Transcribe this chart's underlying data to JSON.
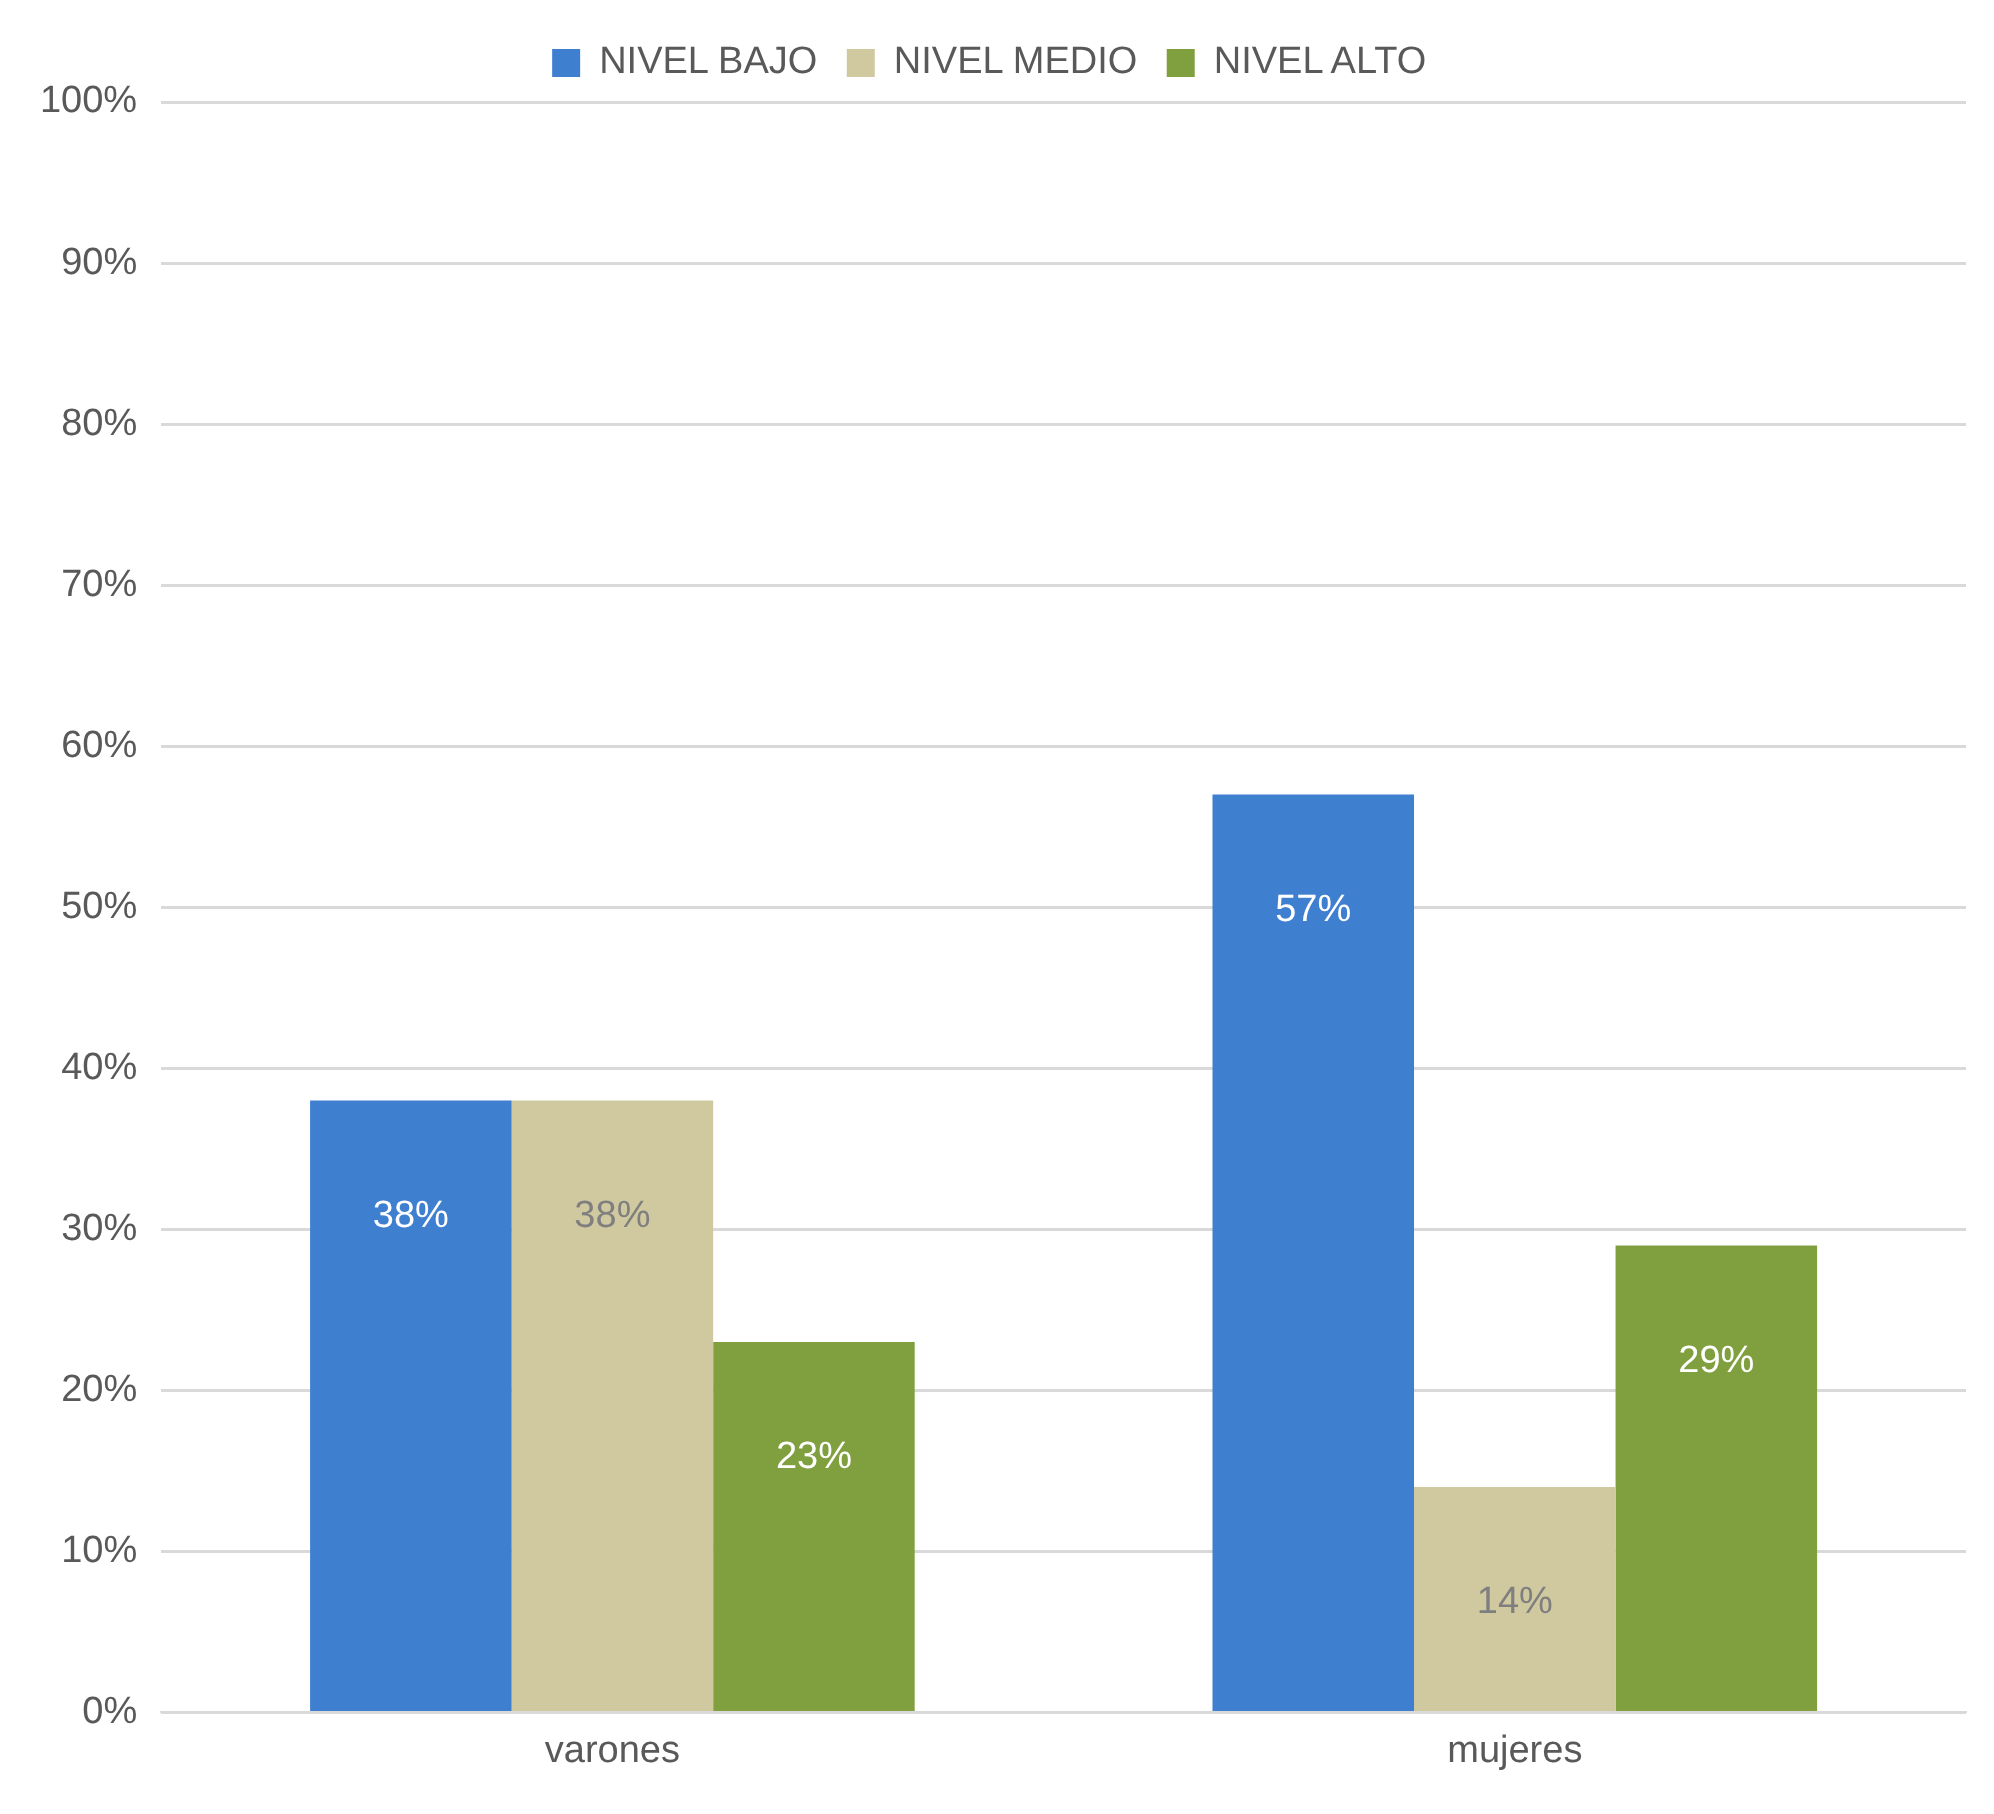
{
  "chart_data": {
    "type": "bar",
    "categories": [
      "varones",
      "mujeres"
    ],
    "series": [
      {
        "name": "NIVEL BAJO",
        "color": "#3f7fd0",
        "values": [
          38,
          57
        ]
      },
      {
        "name": "NIVEL MEDIO",
        "color": "#d0c9a0",
        "values": [
          38,
          14
        ]
      },
      {
        "name": "NIVEL ALTO",
        "color": "#80a040",
        "values": [
          23,
          29
        ]
      }
    ],
    "ylim": [
      0,
      100
    ],
    "yticks": [
      {
        "value": 0,
        "label": "0%"
      },
      {
        "value": 10,
        "label": "10%"
      },
      {
        "value": 20,
        "label": "20%"
      },
      {
        "value": 30,
        "label": "30%"
      },
      {
        "value": 40,
        "label": "40%"
      },
      {
        "value": 50,
        "label": "50%"
      },
      {
        "value": 60,
        "label": "60%"
      },
      {
        "value": 70,
        "label": "70%"
      },
      {
        "value": 80,
        "label": "80%"
      },
      {
        "value": 90,
        "label": "90%"
      },
      {
        "value": 100,
        "label": "100%"
      }
    ],
    "value_labels": [
      [
        "38%",
        "57%"
      ],
      [
        "38%",
        "14%"
      ],
      [
        "23%",
        "29%"
      ]
    ],
    "grid": "y",
    "legend": "top"
  }
}
